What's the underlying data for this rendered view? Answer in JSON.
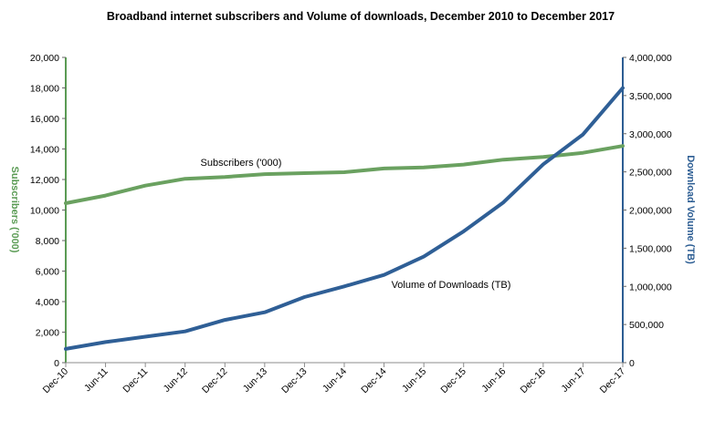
{
  "chart_data": {
    "type": "line",
    "title": "Broadband  internet subscribers and Volume of downloads, December 2010  to December 2017",
    "categories": [
      "Dec-10",
      "Jun-11",
      "Dec-11",
      "Jun-12",
      "Dec-12",
      "Jun-13",
      "Dec-13",
      "Jun-14",
      "Dec-14",
      "Jun-15",
      "Dec-15",
      "Jun-16",
      "Dec-16",
      "Jun-17",
      "Dec-17"
    ],
    "y_left": {
      "label": "Subscribers ('000)",
      "range": [
        0,
        20000
      ],
      "ticks": [
        "0",
        "2,000",
        "4,000",
        "6,000",
        "8,000",
        "10,000",
        "12,000",
        "14,000",
        "16,000",
        "18,000",
        "20,000"
      ],
      "color": "#5a9b54"
    },
    "y_right": {
      "label": "Download Volume (TB)",
      "range": [
        0,
        4000000
      ],
      "ticks": [
        "0",
        "500,000",
        "1,000,000",
        "1,500,000",
        "2,000,000",
        "2,500,000",
        "3,000,000",
        "3,500,000",
        "4,000,000"
      ],
      "color": "#2c5d93"
    },
    "series": [
      {
        "name": "Subscribers ('000)",
        "axis": "left",
        "color": "#6aa160",
        "values": [
          10450,
          10950,
          11600,
          12050,
          12170,
          12350,
          12420,
          12480,
          12720,
          12790,
          12980,
          13300,
          13480,
          13750,
          14200
        ]
      },
      {
        "name": "Volume of Downloads (TB)",
        "axis": "right",
        "color": "#2f5f96",
        "values": [
          180000,
          270000,
          340000,
          410000,
          560000,
          660000,
          860000,
          1000000,
          1150000,
          1390000,
          1720000,
          2100000,
          2600000,
          2990000,
          3600000
        ]
      }
    ],
    "grid": false,
    "legend": "none"
  }
}
